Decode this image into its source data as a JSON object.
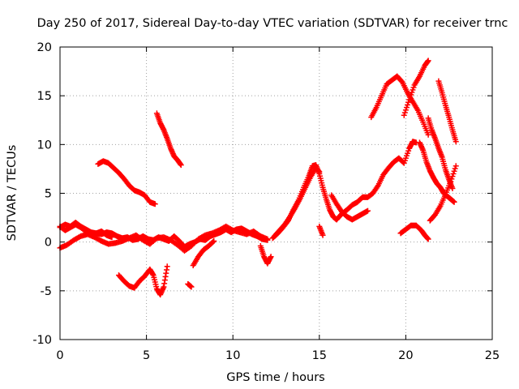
{
  "chart_data": {
    "type": "scatter",
    "title": "Day 250 of 2017, Sidereal Day-to-day VTEC variation (SDTVAR) for receiver trnc",
    "xlabel": "GPS time / hours",
    "ylabel": "SDTVAR / TECUs",
    "xlim": [
      0,
      25
    ],
    "ylim": [
      -10,
      20
    ],
    "xticks": [
      "0",
      "5",
      "10",
      "15",
      "20",
      "25"
    ],
    "yticks": [
      "-10",
      "-5",
      "0",
      "5",
      "10",
      "15",
      "20"
    ],
    "grid": true,
    "marker": "plus",
    "color": "#ff0000",
    "series": [
      {
        "x": [
          0.0,
          0.3,
          0.6,
          0.9,
          1.2,
          1.5,
          1.8,
          2.1,
          2.4,
          2.7,
          3.0,
          3.3,
          3.6,
          3.9,
          4.2,
          4.5,
          4.8,
          5.1,
          5.4,
          5.7,
          6.0,
          6.3,
          6.6,
          6.9,
          7.2,
          7.5,
          7.8,
          8.1,
          8.4,
          8.7,
          9.0,
          9.3,
          9.6,
          9.9,
          10.2,
          10.5,
          10.8,
          11.1,
          11.4,
          11.7,
          12.0
        ],
        "y": [
          1.5,
          1.8,
          1.6,
          2.0,
          1.6,
          1.3,
          1.0,
          0.9,
          0.8,
          1.0,
          0.9,
          0.6,
          0.4,
          0.5,
          0.2,
          0.3,
          0.6,
          0.3,
          0.2,
          0.5,
          0.3,
          0.1,
          0.6,
          0.1,
          -0.5,
          -0.2,
          0.0,
          0.3,
          0.2,
          0.6,
          0.8,
          1.0,
          1.3,
          1.0,
          1.3,
          1.4,
          1.1,
          0.8,
          0.6,
          0.3,
          0.2
        ]
      },
      {
        "x": [
          0.0,
          0.4,
          0.8,
          1.2,
          1.6,
          2.0,
          2.4,
          2.8,
          3.2,
          3.6,
          4.0,
          4.4,
          4.8,
          5.2,
          5.6,
          6.0,
          6.4,
          6.8,
          7.2,
          7.6,
          8.0,
          8.4,
          8.8,
          9.2,
          9.6,
          10.0,
          10.4,
          10.8,
          11.2,
          11.6,
          12.0
        ],
        "y": [
          -0.6,
          -0.3,
          0.2,
          0.6,
          0.8,
          0.5,
          0.1,
          -0.2,
          -0.1,
          0.1,
          0.4,
          0.7,
          0.2,
          -0.2,
          0.4,
          0.5,
          0.2,
          -0.3,
          -0.9,
          -0.4,
          0.3,
          0.7,
          0.9,
          1.2,
          1.6,
          1.2,
          1.0,
          0.8,
          1.1,
          0.6,
          0.3
        ]
      },
      {
        "x": [
          0.0,
          0.3,
          0.6,
          0.9,
          1.2,
          1.5,
          1.8,
          2.1,
          2.4,
          2.7,
          3.0
        ],
        "y": [
          1.6,
          1.2,
          1.5,
          1.8,
          1.5,
          1.1,
          0.8,
          0.9,
          1.1,
          0.7,
          0.5
        ]
      },
      {
        "x": [
          2.2,
          2.5,
          2.8,
          3.1,
          3.4,
          3.7,
          4.0,
          4.3,
          4.6,
          4.9,
          5.2,
          5.5
        ],
        "y": [
          8.0,
          8.3,
          8.1,
          7.6,
          7.1,
          6.5,
          5.8,
          5.3,
          5.1,
          4.8,
          4.1,
          3.9
        ]
      },
      {
        "x": [
          5.6,
          5.8,
          6.0,
          6.2,
          6.4,
          6.6,
          6.8,
          7.0
        ],
        "y": [
          13.2,
          12.2,
          11.5,
          10.6,
          9.6,
          8.8,
          8.4,
          7.9
        ]
      },
      {
        "x": [
          3.4,
          3.7,
          4.0,
          4.3,
          4.6,
          4.9,
          5.2,
          5.4,
          5.6,
          5.8,
          6.0,
          6.2
        ],
        "y": [
          -3.4,
          -4.0,
          -4.5,
          -4.7,
          -4.0,
          -3.5,
          -2.8,
          -3.4,
          -4.8,
          -5.4,
          -4.6,
          -2.5
        ]
      },
      {
        "x": [
          7.4,
          7.6
        ],
        "y": [
          -4.3,
          -4.6
        ]
      },
      {
        "x": [
          7.7,
          8.0,
          8.3,
          8.6,
          8.9
        ],
        "y": [
          -2.4,
          -1.5,
          -0.8,
          -0.4,
          0.1
        ]
      },
      {
        "x": [
          11.6,
          11.8,
          12.0,
          12.2
        ],
        "y": [
          -0.4,
          -1.5,
          -2.2,
          -1.5
        ]
      },
      {
        "x": [
          12.3,
          12.6,
          12.9,
          13.2,
          13.5,
          13.8,
          14.1,
          14.4,
          14.6,
          14.8,
          15.0,
          15.2,
          15.4,
          15.6,
          15.8,
          16.0,
          16.3,
          16.6,
          16.9,
          17.2,
          17.5,
          17.8,
          18.1,
          18.4,
          18.7,
          19.0,
          19.3,
          19.6,
          19.9,
          20.2,
          20.4,
          20.6
        ],
        "y": [
          0.4,
          0.9,
          1.5,
          2.2,
          3.3,
          4.3,
          5.6,
          6.8,
          7.8,
          7.9,
          7.0,
          5.6,
          4.4,
          3.3,
          2.6,
          2.3,
          2.9,
          3.3,
          3.8,
          4.1,
          4.6,
          4.6,
          5.0,
          5.8,
          6.9,
          7.6,
          8.2,
          8.6,
          8.1,
          9.6,
          10.3,
          10.2
        ]
      },
      {
        "x": [
          12.4,
          12.7,
          13.0,
          13.3,
          13.6,
          13.9,
          14.2,
          14.5,
          14.8,
          15.0
        ],
        "y": [
          0.6,
          1.2,
          1.8,
          2.6,
          3.5,
          4.5,
          5.6,
          6.7,
          7.6,
          7.2
        ]
      },
      {
        "x": [
          15.0,
          15.2
        ],
        "y": [
          1.6,
          0.7
        ]
      },
      {
        "x": [
          15.7,
          16.0,
          16.3,
          16.6,
          16.9,
          17.2,
          17.5,
          17.8
        ],
        "y": [
          4.8,
          3.9,
          3.1,
          2.6,
          2.3,
          2.6,
          2.9,
          3.2
        ]
      },
      {
        "x": [
          18.0,
          18.3,
          18.6,
          18.9,
          19.2,
          19.5,
          19.8,
          20.1,
          20.4,
          20.7,
          21.0,
          21.3
        ],
        "y": [
          12.8,
          13.8,
          15.0,
          16.2,
          16.6,
          17.0,
          16.4,
          15.3,
          14.4,
          13.5,
          12.3,
          11.0
        ]
      },
      {
        "x": [
          19.9,
          20.2,
          20.5,
          20.8,
          21.1,
          21.3
        ],
        "y": [
          13.0,
          14.6,
          16.1,
          17.0,
          18.1,
          18.6
        ]
      },
      {
        "x": [
          20.8,
          21.0,
          21.2,
          21.4,
          21.6,
          21.8,
          22.0,
          22.2,
          22.4,
          22.6,
          22.8
        ],
        "y": [
          10.2,
          9.4,
          8.2,
          7.3,
          6.6,
          6.0,
          5.6,
          5.0,
          4.7,
          4.4,
          4.1
        ]
      },
      {
        "x": [
          21.3,
          21.5,
          21.7,
          21.9,
          22.1,
          22.3,
          22.5,
          22.7
        ],
        "y": [
          12.7,
          11.5,
          10.6,
          9.6,
          8.7,
          7.4,
          6.4,
          5.5
        ]
      },
      {
        "x": [
          21.9,
          22.1,
          22.3,
          22.5,
          22.7,
          22.9
        ],
        "y": [
          16.5,
          15.3,
          14.0,
          12.8,
          11.5,
          10.3
        ]
      },
      {
        "x": [
          19.7,
          20.0,
          20.3,
          20.6,
          20.9,
          21.1,
          21.3
        ],
        "y": [
          0.9,
          1.3,
          1.7,
          1.7,
          1.2,
          0.7,
          0.3
        ]
      },
      {
        "x": [
          21.4,
          21.7,
          22.0,
          22.3,
          22.6,
          22.9
        ],
        "y": [
          2.2,
          2.8,
          3.7,
          4.9,
          6.2,
          7.8
        ]
      }
    ]
  }
}
